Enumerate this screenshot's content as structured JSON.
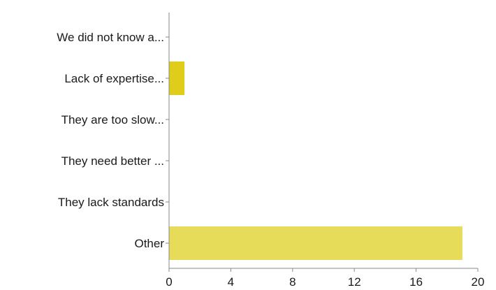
{
  "chart_data": {
    "type": "bar",
    "orientation": "horizontal",
    "categories": [
      "We did not know a...",
      "Lack of expertise...",
      "They are too slow...",
      "They need better ...",
      "They lack standards",
      "Other"
    ],
    "values": [
      0,
      1,
      0,
      0,
      0,
      19
    ],
    "xlim": [
      0,
      20
    ],
    "xticks": [
      0,
      4,
      8,
      12,
      16,
      20
    ],
    "grid": false,
    "legend": "none",
    "colors": {
      "bar_default": "#e6dc5a",
      "bar_highlight": "#e0cc1a",
      "axis": "#888888",
      "text": "#1a1a1a"
    },
    "bar_colors": [
      "#e6dc5a",
      "#e0cc1a",
      "#e6dc5a",
      "#e6dc5a",
      "#e6dc5a",
      "#e6dc5a"
    ]
  }
}
